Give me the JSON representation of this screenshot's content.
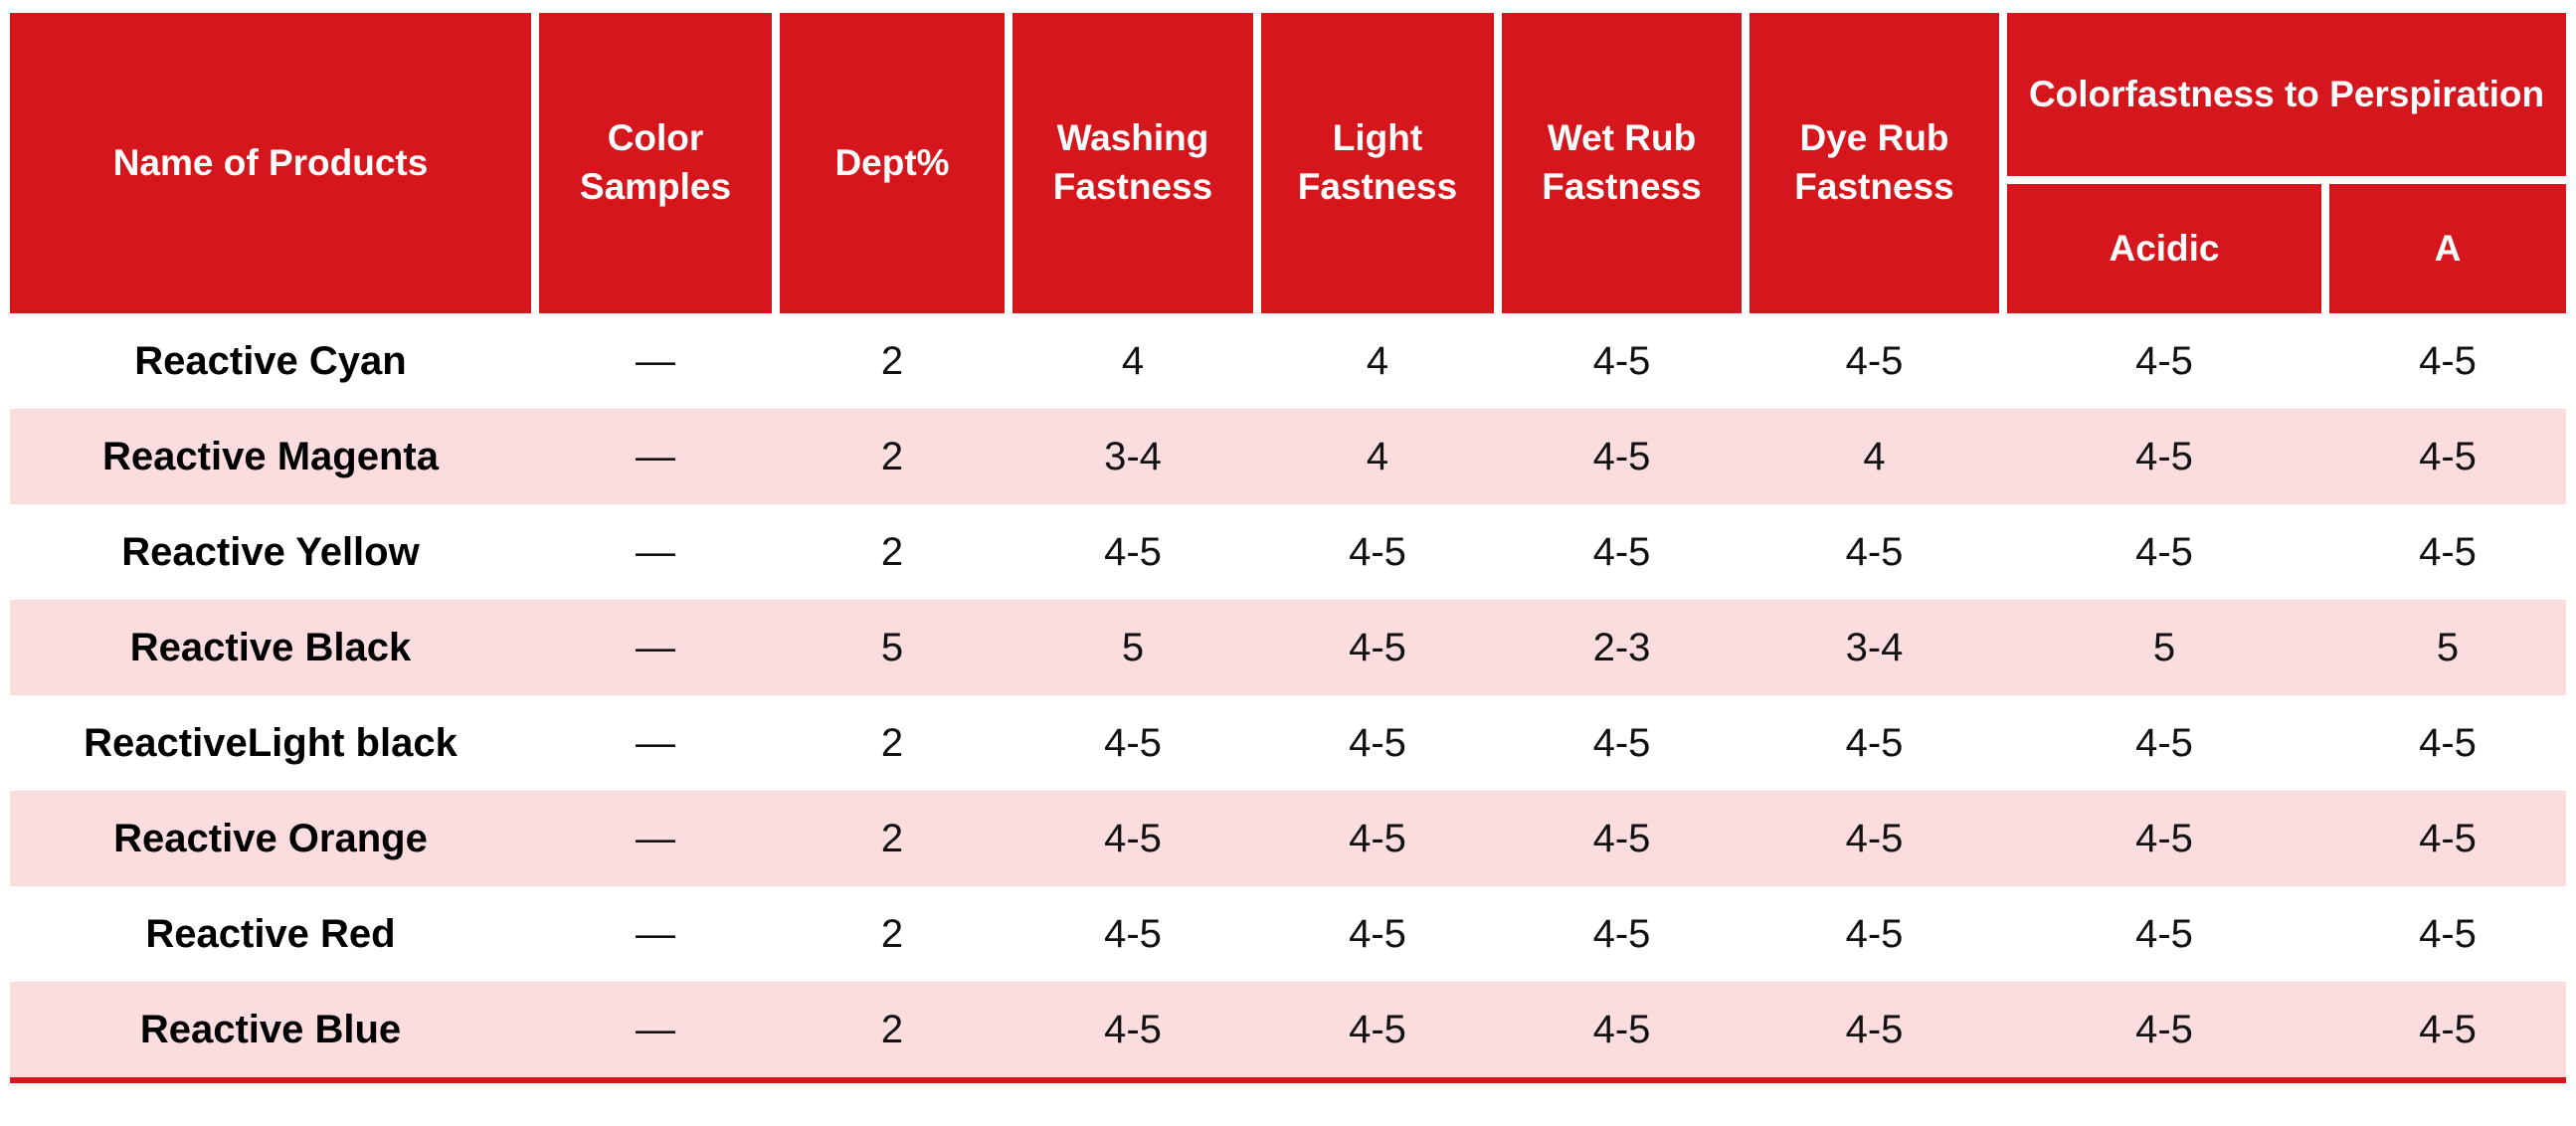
{
  "table": {
    "header_cols": [
      "Name of Products",
      "Color Samples",
      "Dept%",
      "Washing Fastness",
      "Light Fastness",
      "Wet Rub Fastness",
      "Dye Rub Fastness"
    ],
    "perspiration_group": {
      "label": "Colorfastness to Perspiration",
      "acidic": "Acidic",
      "a": "A"
    },
    "rows": [
      {
        "name": "Reactive Cyan",
        "values": [
          "—",
          "2",
          "4",
          "4",
          "4-5",
          "4-5",
          "4-5",
          "4-5"
        ]
      },
      {
        "name": "Reactive Magenta",
        "values": [
          "—",
          "2",
          "3-4",
          "4",
          "4-5",
          "4",
          "4-5",
          "4-5"
        ]
      },
      {
        "name": "Reactive Yellow",
        "values": [
          "—",
          "2",
          "4-5",
          "4-5",
          "4-5",
          "4-5",
          "4-5",
          "4-5"
        ]
      },
      {
        "name": "Reactive Black",
        "values": [
          "—",
          "5",
          "5",
          "4-5",
          "2-3",
          "3-4",
          "5",
          "5"
        ]
      },
      {
        "name": "ReactiveLight black",
        "values": [
          "—",
          "2",
          "4-5",
          "4-5",
          "4-5",
          "4-5",
          "4-5",
          "4-5"
        ]
      },
      {
        "name": "Reactive Orange",
        "values": [
          "—",
          "2",
          "4-5",
          "4-5",
          "4-5",
          "4-5",
          "4-5",
          "4-5"
        ]
      },
      {
        "name": "Reactive Red",
        "values": [
          "—",
          "2",
          "4-5",
          "4-5",
          "4-5",
          "4-5",
          "4-5",
          "4-5"
        ]
      },
      {
        "name": "Reactive Blue",
        "values": [
          "—",
          "2",
          "4-5",
          "4-5",
          "4-5",
          "4-5",
          "4-5",
          "4-5"
        ]
      }
    ]
  },
  "colors": {
    "header_red": "#d6161d",
    "row_pink": "#fbdde0",
    "row_white": "#ffffff",
    "header_text": "#ffffff",
    "body_text": "#111111"
  }
}
